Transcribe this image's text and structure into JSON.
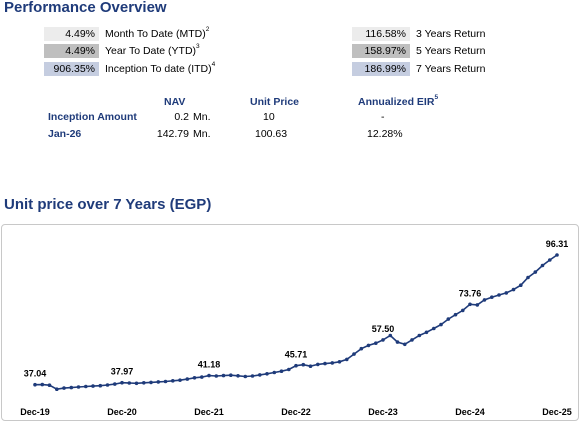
{
  "overview": {
    "title": "Performance Overview",
    "left": [
      {
        "value": "4.49%",
        "label": "Month To Date (MTD)",
        "note": "2",
        "bg": "#ececec"
      },
      {
        "value": "4.49%",
        "label": "Year To Date (YTD)",
        "note": "3",
        "bg": "#bfbfbf"
      },
      {
        "value": "906.35%",
        "label": "Inception To date (ITD)",
        "note": "4",
        "bg": "#c5cde0"
      }
    ],
    "right": [
      {
        "value": "116.58%",
        "label": "3 Years Return",
        "bg": "#ececec"
      },
      {
        "value": "158.97%",
        "label": "5 Years Return",
        "bg": "#bfbfbf"
      },
      {
        "value": "186.99%",
        "label": "7 Years Return",
        "bg": "#c5cde0"
      }
    ]
  },
  "nav_table": {
    "headers": {
      "nav": "NAV",
      "unit_price": "Unit Price",
      "eir": "Annualized EIR",
      "eir_note": "5"
    },
    "rows": [
      {
        "label": "Inception Amount",
        "nav": "0.2",
        "unit": "Mn.",
        "unit_price": "10",
        "eir": "-"
      },
      {
        "label": "Jan-26",
        "nav": "142.79",
        "unit": "Mn.",
        "unit_price": "100.63",
        "eir": "12.28%"
      }
    ]
  },
  "chart_title": "Unit price over 7 Years (EGP)",
  "chart_data": {
    "type": "line",
    "title": "Unit price over 7 Years (EGP)",
    "x_tick_labels": [
      "Dec-19",
      "Dec-20",
      "Dec-21",
      "Dec-22",
      "Dec-23",
      "Dec-24",
      "Dec-25"
    ],
    "data_labels": [
      {
        "index": 0,
        "text": "37.04"
      },
      {
        "index": 12,
        "text": "37.97"
      },
      {
        "index": 24,
        "text": "41.18"
      },
      {
        "index": 36,
        "text": "45.71"
      },
      {
        "index": 48,
        "text": "57.50"
      },
      {
        "index": 60,
        "text": "73.76"
      },
      {
        "index": 72,
        "text": "96.31"
      }
    ],
    "ylim": [
      20,
      110
    ],
    "series": [
      {
        "color": "#1f3b7a",
        "x": [
          "Dec-19",
          "Jan-20",
          "Feb-20",
          "Mar-20",
          "Apr-20",
          "May-20",
          "Jun-20",
          "Jul-20",
          "Aug-20",
          "Sep-20",
          "Oct-20",
          "Nov-20",
          "Dec-20",
          "Jan-21",
          "Feb-21",
          "Mar-21",
          "Apr-21",
          "May-21",
          "Jun-21",
          "Jul-21",
          "Aug-21",
          "Sep-21",
          "Oct-21",
          "Nov-21",
          "Dec-21",
          "Jan-22",
          "Feb-22",
          "Mar-22",
          "Apr-22",
          "May-22",
          "Jun-22",
          "Jul-22",
          "Aug-22",
          "Sep-22",
          "Oct-22",
          "Nov-22",
          "Dec-22",
          "Jan-23",
          "Feb-23",
          "Mar-23",
          "Apr-23",
          "May-23",
          "Jun-23",
          "Jul-23",
          "Aug-23",
          "Sep-23",
          "Oct-23",
          "Nov-23",
          "Dec-23",
          "Jan-24",
          "Feb-24",
          "Mar-24",
          "Apr-24",
          "May-24",
          "Jun-24",
          "Jul-24",
          "Aug-24",
          "Sep-24",
          "Oct-24",
          "Nov-24",
          "Dec-24",
          "Jan-25",
          "Feb-25",
          "Mar-25",
          "Apr-25",
          "May-25",
          "Jun-25",
          "Jul-25",
          "Aug-25",
          "Sep-25",
          "Oct-25",
          "Nov-25",
          "Dec-25"
        ],
        "values": [
          37.04,
          37.1,
          36.8,
          35.0,
          35.5,
          35.7,
          36.0,
          36.2,
          36.4,
          36.6,
          36.9,
          37.3,
          37.97,
          37.8,
          37.7,
          37.9,
          38.1,
          38.3,
          38.5,
          38.8,
          39.1,
          39.6,
          40.2,
          40.5,
          41.18,
          41.0,
          41.2,
          41.4,
          41.1,
          40.8,
          41.0,
          41.5,
          42.0,
          42.6,
          43.2,
          44.0,
          45.71,
          46.2,
          45.5,
          46.3,
          46.7,
          47.0,
          47.5,
          48.6,
          51.0,
          53.5,
          55.0,
          56.0,
          57.5,
          59.5,
          56.5,
          55.5,
          57.5,
          59.5,
          61.0,
          62.7,
          64.5,
          67.0,
          69.0,
          71.0,
          73.76,
          73.5,
          75.8,
          77.0,
          78.0,
          79.0,
          80.5,
          82.5,
          86.0,
          88.5,
          91.5,
          94.0,
          96.31
        ]
      }
    ]
  }
}
